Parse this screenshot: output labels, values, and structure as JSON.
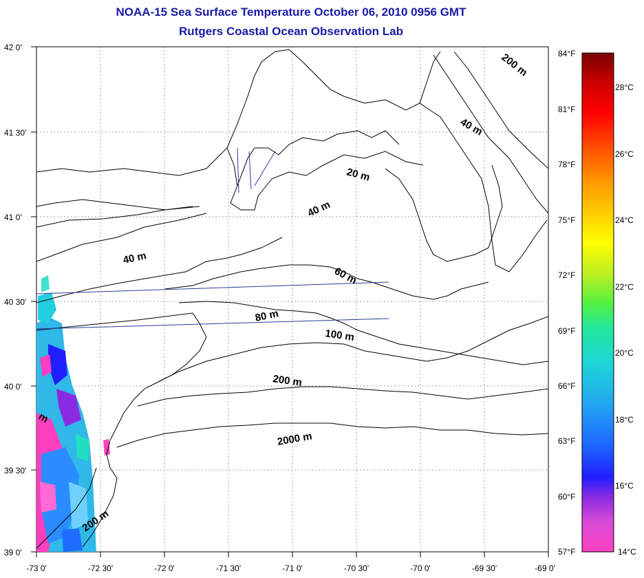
{
  "title": "NOAA-15 Sea Surface Temperature October 06, 2010 0956 GMT",
  "subtitle": "Rutgers Coastal Ocean Observation Lab",
  "map": {
    "lat_ticks": [
      "42 0'",
      "41 30'",
      "41 0'",
      "40 30'",
      "40 0'",
      "39 30'",
      "39 0'"
    ],
    "lon_ticks": [
      "-73 0'",
      "-72 30'",
      "-72 0'",
      "-71 30'",
      "-71 0'",
      "-70 30'",
      "-70 0'",
      "-69 30'",
      "-69 0'"
    ],
    "contour_labels": [
      "200 m",
      "40 m",
      "20 m",
      "40 m",
      "40 m",
      "60 m",
      "80 m",
      "100 m",
      "200 m",
      "2000 m",
      "200 m",
      "m"
    ],
    "land_color": "#ffffff",
    "coast_color": "#000000",
    "track_color": "#2a3a9a"
  },
  "colorbar": {
    "fahrenheit_labels": [
      "84°F",
      "81°F",
      "78°F",
      "75°F",
      "72°F",
      "69°F",
      "66°F",
      "63°F",
      "60°F",
      "57°F"
    ],
    "celsius_labels": [
      "28°C",
      "26°C",
      "24°C",
      "22°C",
      "20°C",
      "18°C",
      "16°C",
      "14°C"
    ],
    "range_celsius": [
      14,
      29
    ]
  }
}
